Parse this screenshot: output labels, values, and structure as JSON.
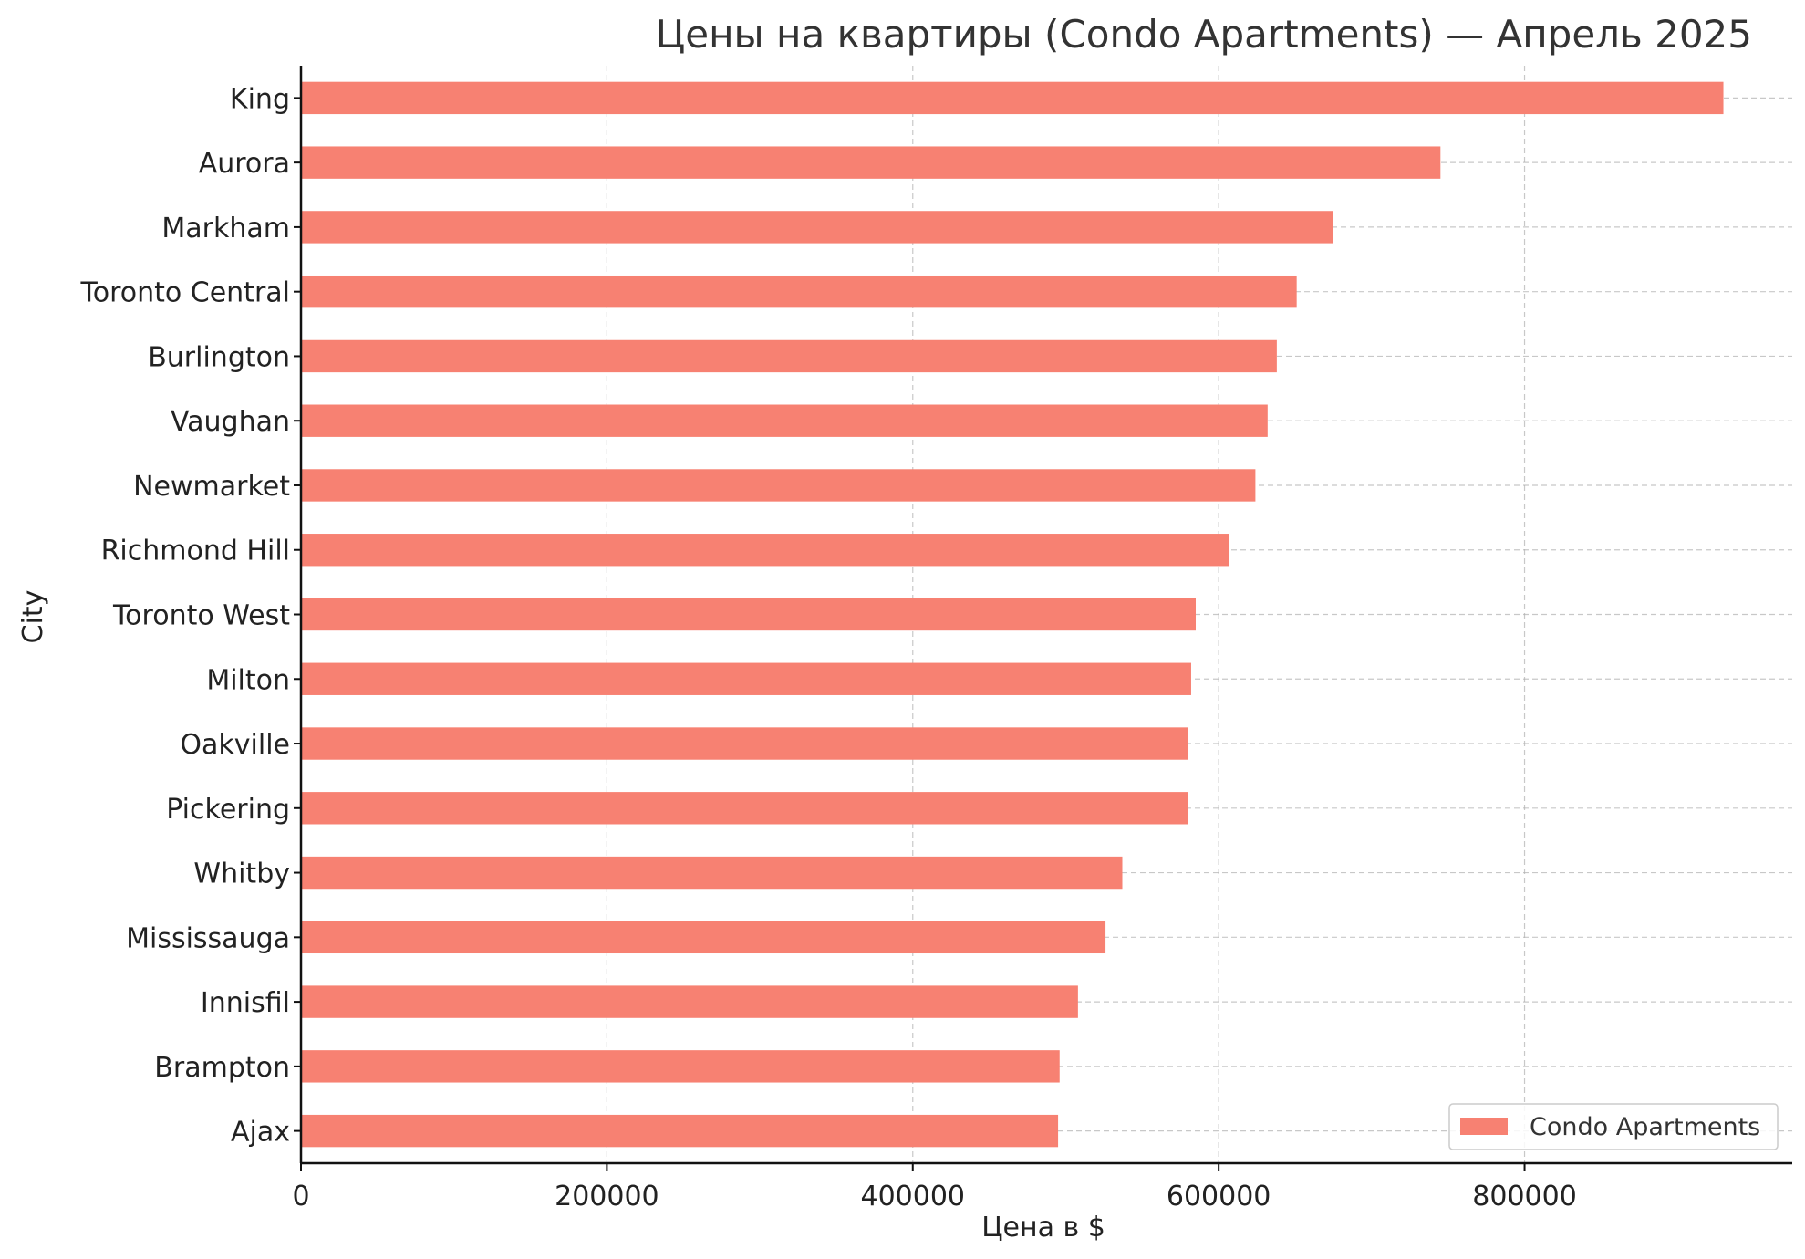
{
  "chart_data": {
    "type": "bar",
    "orientation": "horizontal",
    "title": "Цены на квартиры (Condo Apartments) — Апрель 2025",
    "xlabel": "Цена в $",
    "ylabel": "City",
    "xlim": [
      0,
      975000
    ],
    "xticks": [
      0,
      200000,
      400000,
      600000,
      800000
    ],
    "xtick_labels": [
      "0",
      "200000",
      "400000",
      "600000",
      "800000"
    ],
    "grid": true,
    "legend_position": "lower-right",
    "categories": [
      "King",
      "Aurora",
      "Markham",
      "Toronto Central",
      "Burlington",
      "Vaughan",
      "Newmarket",
      "Richmond Hill",
      "Toronto West",
      "Milton",
      "Oakville",
      "Pickering",
      "Whitby",
      "Mississauga",
      "Innisfil",
      "Brampton",
      "Ajax"
    ],
    "series": [
      {
        "name": "Condo Apartments",
        "color": "#f78172",
        "values": [
          930000,
          745000,
          675000,
          651000,
          638000,
          632000,
          624000,
          607000,
          585000,
          582000,
          580000,
          580000,
          537000,
          526000,
          508000,
          496000,
          495000
        ]
      }
    ]
  }
}
